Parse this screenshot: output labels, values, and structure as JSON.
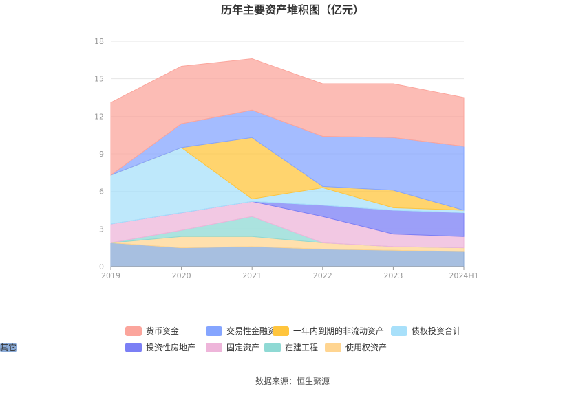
{
  "chart_data": {
    "type": "area",
    "stacked": true,
    "title": "历年主要资产堆积图（亿元）",
    "x": [
      "2019",
      "2020",
      "2021",
      "2022",
      "2023",
      "2024H1"
    ],
    "ylim": [
      0,
      18
    ],
    "yticks": [
      "0",
      "3",
      "6",
      "9",
      "12",
      "15",
      "18"
    ],
    "grid": true,
    "legend_position": "bottom",
    "series": [
      {
        "name": "其它",
        "color": "#8aaad6",
        "values": [
          1.9,
          1.5,
          1.6,
          1.4,
          1.3,
          1.2
        ]
      },
      {
        "name": "使用权资产",
        "color": "#ffd591",
        "values": [
          0.0,
          0.9,
          0.8,
          0.5,
          0.3,
          0.3
        ]
      },
      {
        "name": "在建工程",
        "color": "#8fd9d4",
        "values": [
          0.0,
          0.5,
          1.6,
          0.0,
          0.0,
          0.0
        ]
      },
      {
        "name": "固定资产",
        "color": "#eeb5da",
        "values": [
          1.5,
          1.4,
          1.2,
          2.1,
          1.0,
          0.9
        ]
      },
      {
        "name": "投资性房地产",
        "color": "#7b7ff5",
        "values": [
          0.0,
          0.0,
          0.0,
          0.9,
          1.9,
          1.9
        ]
      },
      {
        "name": "债权投资合计",
        "color": "#a8e0fa",
        "values": [
          3.9,
          5.2,
          0.2,
          1.4,
          0.2,
          0.2
        ]
      },
      {
        "name": "一年内到期的非流动资产",
        "color": "#ffc53d",
        "values": [
          0.0,
          0.0,
          4.9,
          0.1,
          1.4,
          0.0
        ]
      },
      {
        "name": "交易性金融资产",
        "color": "#85a5ff",
        "values": [
          0.0,
          1.9,
          2.2,
          4.0,
          4.2,
          5.1
        ]
      },
      {
        "name": "货币资金",
        "color": "#fba59c",
        "values": [
          5.8,
          4.6,
          4.1,
          4.2,
          4.3,
          3.9
        ]
      }
    ],
    "legend_order": [
      "货币资金",
      "交易性金融资产",
      "一年内到期的非流动资产",
      "债权投资合计",
      "投资性房地产",
      "固定资产",
      "在建工程",
      "使用权资产",
      "其它"
    ],
    "source": "数据来源：恒生聚源"
  }
}
